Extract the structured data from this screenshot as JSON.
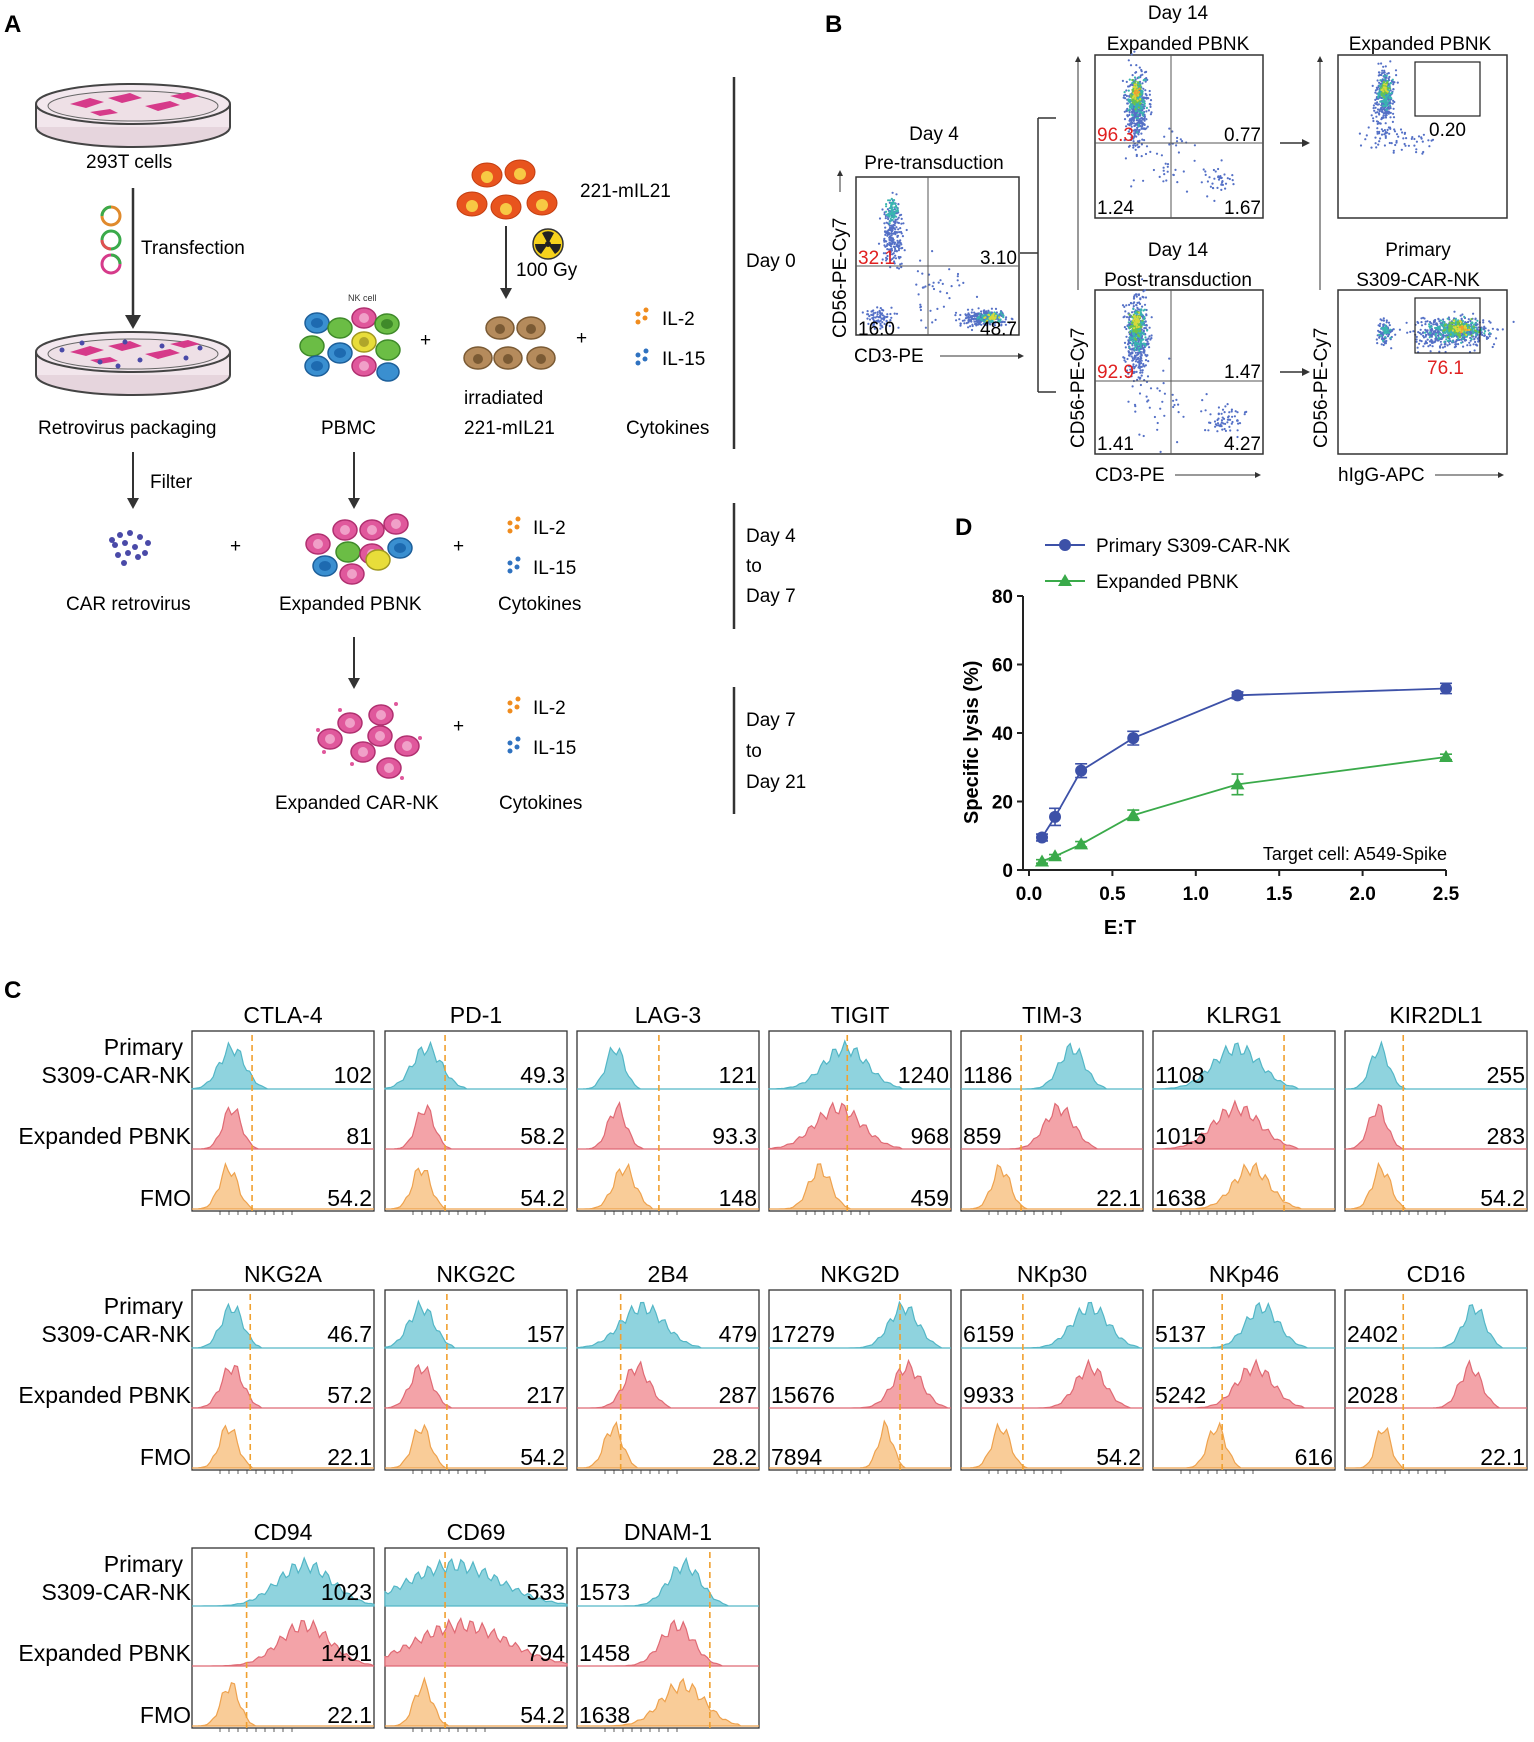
{
  "panel_labels": {
    "a": "A",
    "b": "B",
    "c": "C",
    "d": "D"
  },
  "panelA": {
    "cells_293t": "293T cells",
    "transfection": "Transfection",
    "retro_packaging": "Retrovirus packaging",
    "filter": "Filter",
    "car_retrovirus": "CAR retrovirus",
    "mil21_cells": "221-mIL21",
    "dose": "100 Gy",
    "nk_cell": "NK cell",
    "pbmc": "PBMC",
    "irradiated_1": "irradiated",
    "irradiated_2": "221-mIL21",
    "il2": "IL-2",
    "il15": "IL-15",
    "cytokines": "Cytokines",
    "expanded_pbnk": "Expanded PBNK",
    "expanded_carnk": "Expanded  CAR-NK",
    "plus": "+",
    "day0": "Day 0",
    "day4": "Day 4",
    "to": "to",
    "day7a": "Day 7",
    "day7b": "Day 7",
    "day21": "Day 21"
  },
  "panelB": {
    "plot1": {
      "title1": "Day 4",
      "title2": "Pre-transduction",
      "q_ul": "32.1",
      "q_ur": "3.10",
      "q_ll": "16.0",
      "q_lr": "48.7",
      "xlabel": "CD3-PE",
      "ylabel": "CD56-PE-Cy7"
    },
    "plot2": {
      "title1": "Day 14",
      "title2": "Expanded PBNK",
      "q_ul": "96.3",
      "q_ur": "0.77",
      "q_ll": "1.24",
      "q_lr": "1.67"
    },
    "plot3": {
      "title1": "Day 14",
      "title2": "Post-transduction",
      "q_ul": "92.9",
      "q_ur": "1.47",
      "q_ll": "1.41",
      "q_lr": "4.27",
      "xlabel": "CD3-PE",
      "ylabel": "CD56-PE-Cy7"
    },
    "plot4": {
      "title": "Expanded PBNK",
      "gate": "0.20"
    },
    "plot5": {
      "title1": "Primary",
      "title2": "S309-CAR-NK",
      "gate": "76.1",
      "xlabel": "hIgG-APC",
      "ylabel": "CD56-PE-Cy7"
    }
  },
  "panelC": {
    "row_labels": {
      "primary1": "Primary",
      "primary2": "S309-CAR-NK",
      "expanded": "Expanded PBNK",
      "fmo": "FMO"
    },
    "markers": [
      {
        "name": "CTLA-4",
        "primary": "102",
        "expanded": "81",
        "fmo": "54.2"
      },
      {
        "name": "PD-1",
        "primary": "49.3",
        "expanded": "58.2",
        "fmo": "54.2"
      },
      {
        "name": "LAG-3",
        "primary": "121",
        "expanded": "93.3",
        "fmo": "148"
      },
      {
        "name": "TIGIT",
        "primary": "1240",
        "expanded": "968",
        "fmo": "459"
      },
      {
        "name": "TIM-3",
        "primary": "1186",
        "expanded": "859",
        "fmo": "22.1"
      },
      {
        "name": "KLRG1",
        "primary": "1108",
        "expanded": "1015",
        "fmo": "1638"
      },
      {
        "name": "KIR2DL1",
        "primary": "255",
        "expanded": "283",
        "fmo": "54.2"
      },
      {
        "name": "NKG2A",
        "primary": "46.7",
        "expanded": "57.2",
        "fmo": "22.1"
      },
      {
        "name": "NKG2C",
        "primary": "157",
        "expanded": "217",
        "fmo": "54.2"
      },
      {
        "name": "2B4",
        "primary": "479",
        "expanded": "287",
        "fmo": "28.2"
      },
      {
        "name": "NKG2D",
        "primary": "17279",
        "expanded": "15676",
        "fmo": "7894"
      },
      {
        "name": "NKp30",
        "primary": "6159",
        "expanded": "9933",
        "fmo": "54.2"
      },
      {
        "name": "NKp46",
        "primary": "5137",
        "expanded": "5242",
        "fmo": "616"
      },
      {
        "name": "CD16",
        "primary": "2402",
        "expanded": "2028",
        "fmo": "22.1"
      },
      {
        "name": "CD94",
        "primary": "1023",
        "expanded": "1491",
        "fmo": "22.1"
      },
      {
        "name": "CD69",
        "primary": "533",
        "expanded": "794",
        "fmo": "54.2"
      },
      {
        "name": "DNAM-1",
        "primary": "1573",
        "expanded": "1458",
        "fmo": "1638"
      }
    ]
  },
  "chart_data": {
    "type": "line",
    "ylabel": "Specific lysis (%)",
    "xlabel": "E:T",
    "annotation": "Target cell: A549-Spike",
    "xlim": [
      0,
      2.5
    ],
    "ylim": [
      0,
      80
    ],
    "xticks": [
      "0.0",
      "0.5",
      "1.0",
      "1.5",
      "2.0",
      "2.5"
    ],
    "yticks": [
      "0",
      "20",
      "40",
      "60",
      "80"
    ],
    "series": [
      {
        "name": "Primary S309-CAR-NK",
        "color": "#3d51a8",
        "marker": "circle",
        "x": [
          0.078,
          0.156,
          0.3125,
          0.625,
          1.25,
          2.5
        ],
        "y": [
          9.5,
          15.5,
          29,
          38.5,
          51,
          53
        ],
        "err": [
          1.0,
          2.5,
          2.0,
          2.0,
          1.0,
          1.5
        ]
      },
      {
        "name": "Expanded PBNK",
        "color": "#3aaa4a",
        "marker": "triangle",
        "x": [
          0.078,
          0.156,
          0.3125,
          0.625,
          1.25,
          2.5
        ],
        "y": [
          2.5,
          4,
          7.5,
          16,
          25,
          33
        ],
        "err": [
          0.5,
          0.5,
          0.8,
          1.5,
          3.0,
          0.8
        ]
      }
    ]
  }
}
